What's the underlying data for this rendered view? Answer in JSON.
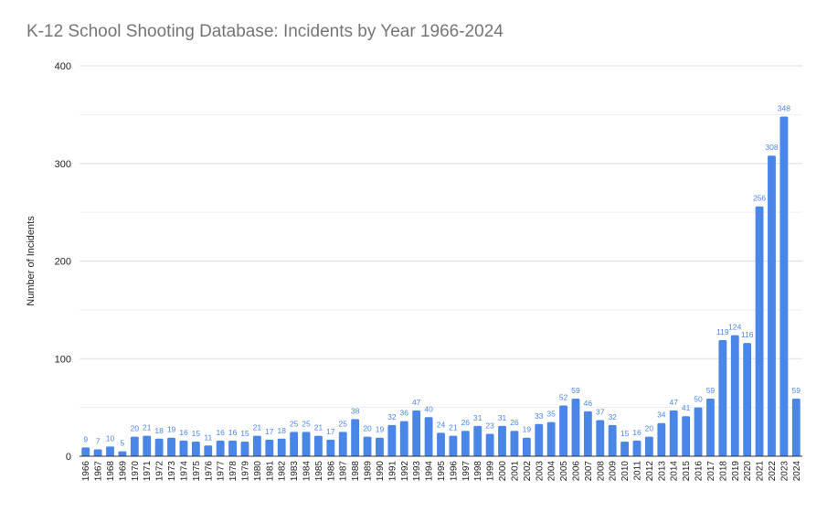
{
  "chart_data": {
    "type": "bar",
    "title": "K-12 School Shooting Database: Incidents by Year 1966-2024",
    "xlabel": "",
    "ylabel": "Number of Incidents",
    "ylim": [
      0,
      400
    ],
    "yticks": [
      0,
      100,
      200,
      300,
      400
    ],
    "grid": true,
    "legend": "none",
    "bar_color": "#4a86e8",
    "label_color": "#4a86e8",
    "categories": [
      "1966",
      "1967",
      "1968",
      "1969",
      "1970",
      "1971",
      "1972",
      "1973",
      "1974",
      "1975",
      "1976",
      "1977",
      "1978",
      "1979",
      "1980",
      "1981",
      "1982",
      "1983",
      "1984",
      "1985",
      "1986",
      "1987",
      "1988",
      "1989",
      "1990",
      "1991",
      "1992",
      "1993",
      "1994",
      "1995",
      "1996",
      "1997",
      "1998",
      "1999",
      "2000",
      "2001",
      "2002",
      "2003",
      "2004",
      "2005",
      "2006",
      "2007",
      "2008",
      "2009",
      "2010",
      "2011",
      "2012",
      "2013",
      "2014",
      "2015",
      "2016",
      "2017",
      "2018",
      "2019",
      "2020",
      "2021",
      "2022",
      "2023",
      "2024"
    ],
    "values": [
      9,
      7,
      10,
      5,
      20,
      21,
      18,
      19,
      16,
      15,
      11,
      16,
      16,
      15,
      21,
      17,
      18,
      25,
      25,
      21,
      17,
      25,
      38,
      20,
      19,
      32,
      36,
      47,
      40,
      24,
      21,
      26,
      31,
      23,
      31,
      26,
      19,
      33,
      35,
      52,
      59,
      46,
      37,
      32,
      15,
      16,
      20,
      34,
      47,
      41,
      50,
      59,
      119,
      124,
      116,
      256,
      308,
      348,
      59
    ]
  }
}
